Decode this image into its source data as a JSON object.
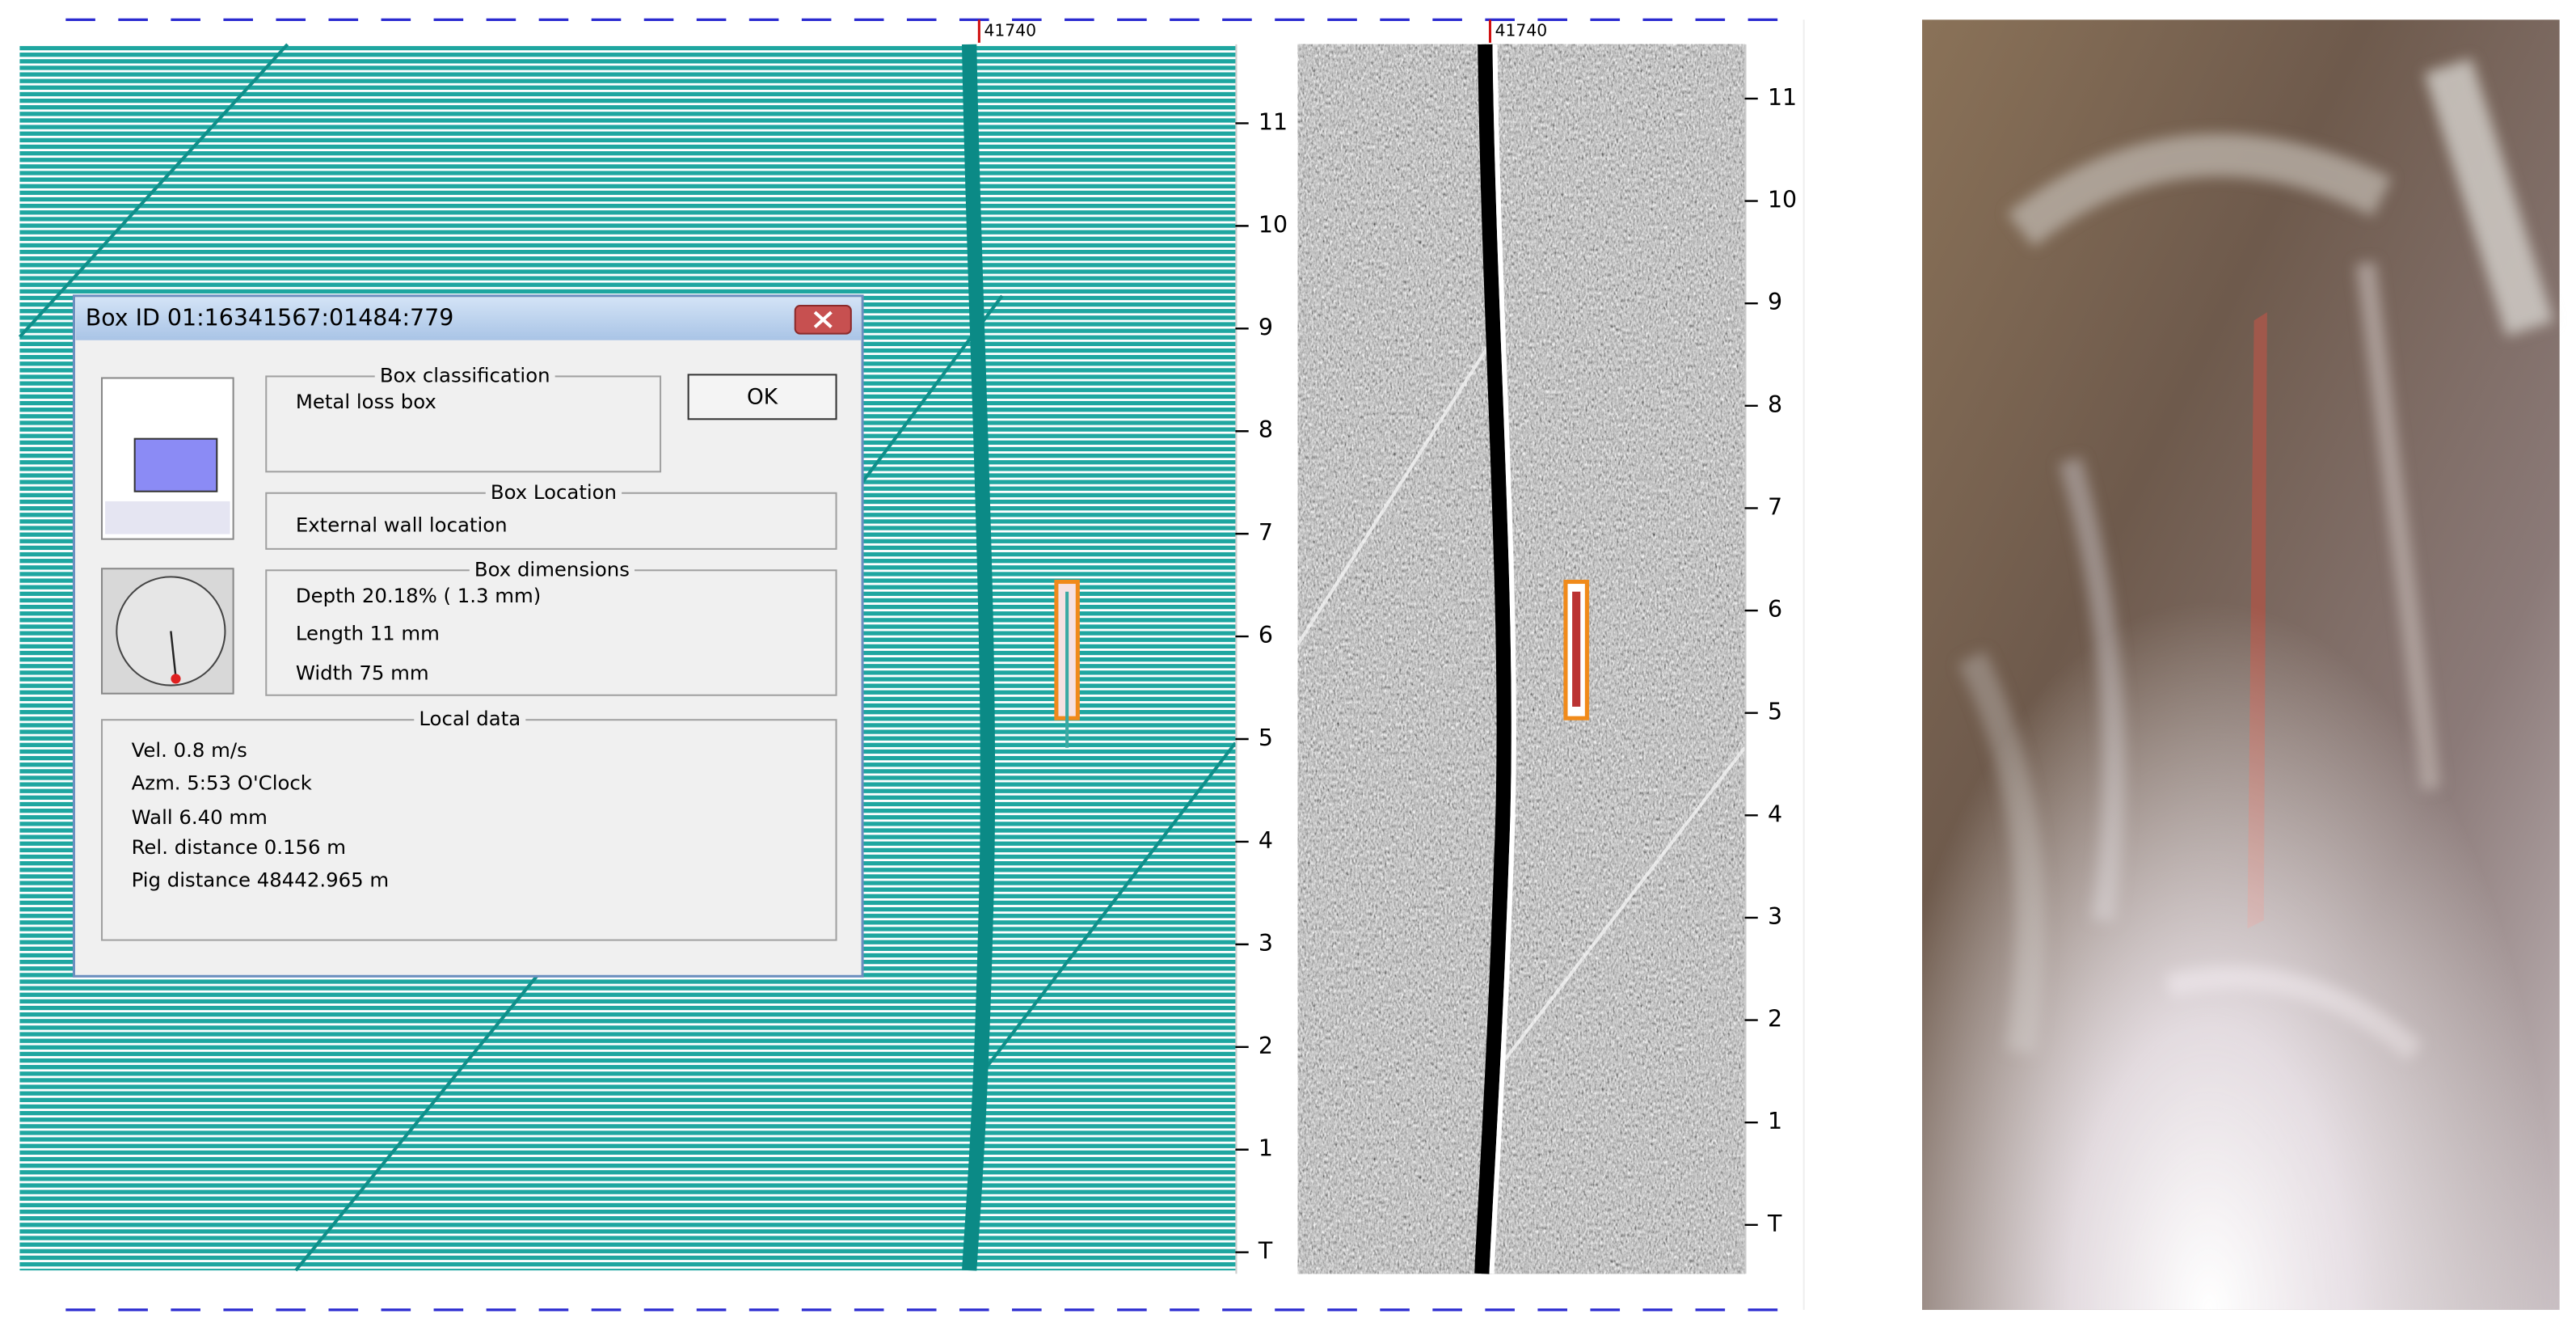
{
  "left_panel": {
    "marker": "41740",
    "clock_labels": [
      "11",
      "10",
      "9",
      "8",
      "7",
      "6",
      "5",
      "4",
      "3",
      "2",
      "1",
      "T"
    ]
  },
  "middle_panel": {
    "marker": "41740",
    "clock_labels": [
      "11",
      "10",
      "9",
      "8",
      "7",
      "6",
      "5",
      "4",
      "3",
      "2",
      "1",
      "T"
    ]
  },
  "dialog": {
    "title": "Box ID 01:16341567:01484:779",
    "ok_button": "OK",
    "classification": {
      "label": "Box classification",
      "value": "Metal loss box"
    },
    "location": {
      "label": "Box Location",
      "value": "External wall location"
    },
    "dimensions": {
      "label": "Box dimensions",
      "lines": [
        "Depth  20.18% ( 1.3 mm)",
        "Length 11 mm",
        "Width  75 mm"
      ]
    },
    "local_data": {
      "label": "Local data",
      "lines": [
        "Vel.  0.8 m/s",
        "Azm.  5:53 O'Clock",
        "Wall 6.40 mm",
        "Rel. distance   0.156 m",
        "Pig distance  48442.965 m"
      ]
    }
  }
}
